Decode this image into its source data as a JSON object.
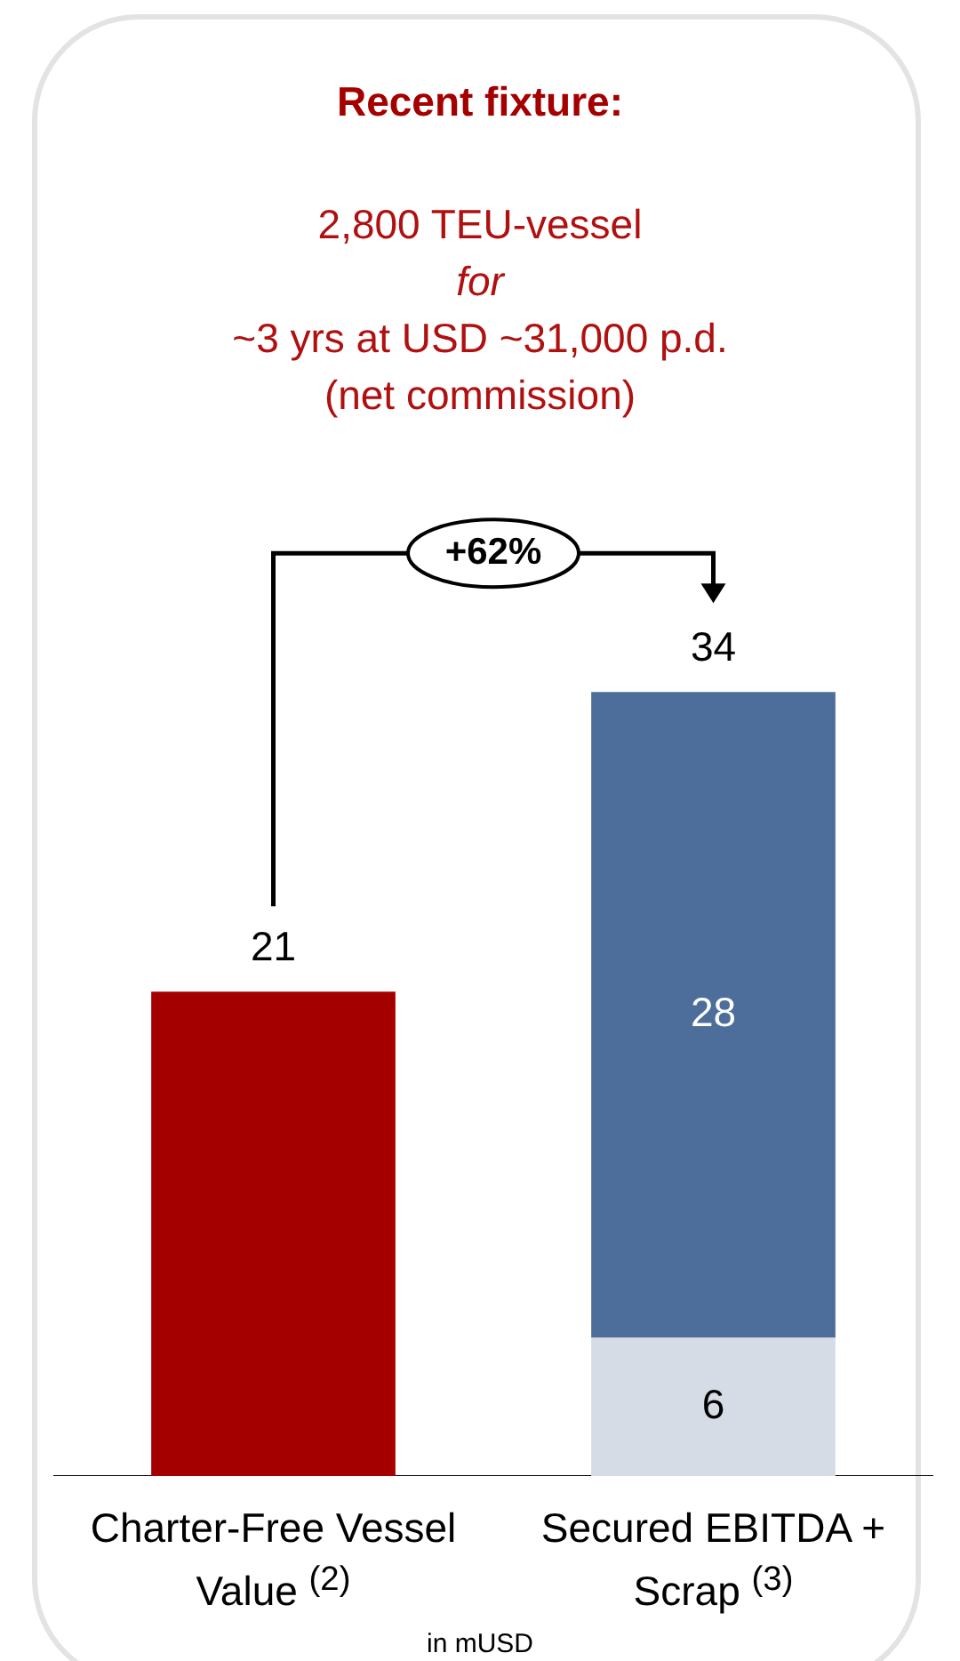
{
  "chart_data": {
    "type": "bar",
    "title": "Recent fixture:",
    "subtitle": "2,800 TEU-vessel\nfor\n~3 yrs at USD ~31,000 p.d.\n(net commission)",
    "categories": [
      "Charter-Free Vessel Value $^{(2)}$",
      "Secured EBITDA + Scrap $^{(3)}$"
    ],
    "stacked": true,
    "series": [
      {
        "colors": [
          "#a50000",
          "#d6dce5"
        ],
        "values": [
          21,
          6
        ],
        "value_labels": [
          null,
          "6"
        ]
      },
      {
        "color": "#4d6d9a",
        "values": [
          null,
          28
        ],
        "value_labels": [
          null,
          "28"
        ]
      }
    ],
    "totals": [
      "21",
      "34"
    ],
    "annotations": [
      "+62%",
      "in mUSD"
    ],
    "grid": false,
    "legend": false
  }
}
